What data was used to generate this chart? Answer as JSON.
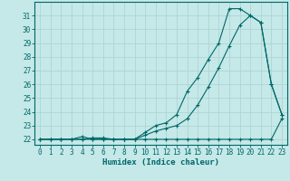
{
  "xlabel": "Humidex (Indice chaleur)",
  "background_color": "#c5e8e8",
  "grid_color": "#afd4d4",
  "line_color": "#006868",
  "xlim": [
    -0.5,
    23.5
  ],
  "ylim": [
    21.6,
    32.0
  ],
  "x_ticks": [
    0,
    1,
    2,
    3,
    4,
    5,
    6,
    7,
    8,
    9,
    10,
    11,
    12,
    13,
    14,
    15,
    16,
    17,
    18,
    19,
    20,
    21,
    22,
    23
  ],
  "y_ticks": [
    22,
    23,
    24,
    25,
    26,
    27,
    28,
    29,
    30,
    31
  ],
  "line1_x": [
    0,
    1,
    2,
    3,
    4,
    5,
    6,
    7,
    8,
    9,
    10,
    11,
    12,
    13,
    14,
    15,
    16,
    17,
    18,
    19,
    20,
    21,
    22,
    23
  ],
  "line1_y": [
    22,
    22,
    22,
    22,
    22,
    22,
    22,
    22,
    22,
    22,
    22,
    22,
    22,
    22,
    22,
    22,
    22,
    22,
    22,
    22,
    22,
    22,
    22,
    23.5
  ],
  "line2_x": [
    0,
    1,
    2,
    3,
    4,
    5,
    6,
    7,
    8,
    9,
    10,
    11,
    12,
    13,
    14,
    15,
    16,
    17,
    18,
    19,
    20,
    21,
    22,
    23
  ],
  "line2_y": [
    22,
    22,
    22,
    22,
    22,
    22.1,
    22.1,
    22,
    22,
    22,
    22.3,
    22.6,
    22.8,
    23.0,
    23.5,
    24.5,
    25.8,
    27.2,
    28.8,
    30.3,
    31.0,
    30.5,
    26.0,
    23.8
  ],
  "line3_x": [
    0,
    1,
    2,
    3,
    4,
    5,
    6,
    7,
    8,
    9,
    10,
    11,
    12,
    13,
    14,
    15,
    16,
    17,
    18,
    19,
    20,
    21,
    22,
    23
  ],
  "line3_y": [
    22,
    22,
    22,
    22,
    22.2,
    22,
    22,
    22,
    22,
    22,
    22.5,
    23.0,
    23.2,
    23.8,
    25.5,
    26.5,
    27.8,
    29.0,
    31.5,
    31.5,
    31.0,
    30.5,
    26.0,
    23.8
  ]
}
